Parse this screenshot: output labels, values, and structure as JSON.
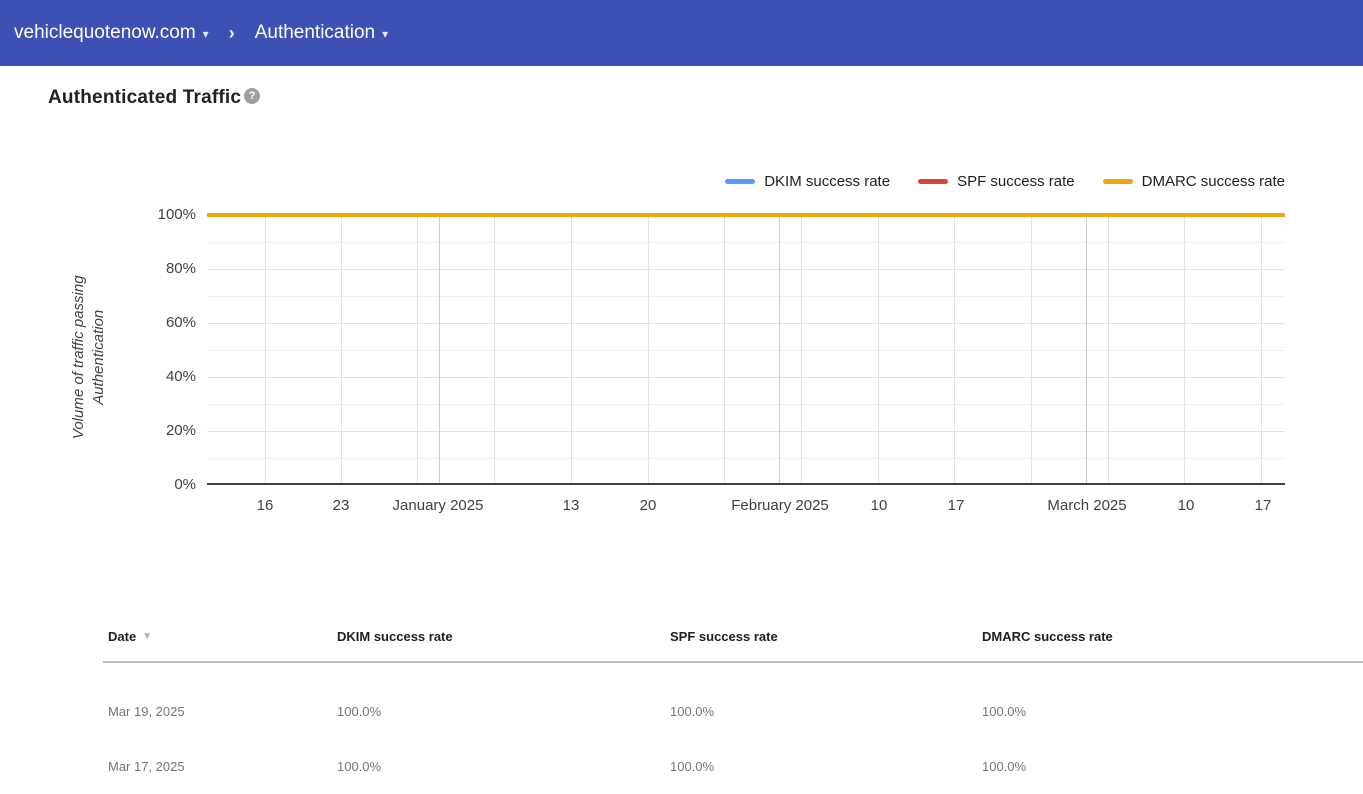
{
  "topbar": {
    "domain_menu": {
      "label": "vehiclequotenow.com",
      "caret": "▾"
    },
    "breadcrumb_separator": "›",
    "section_menu": {
      "label": "Authentication",
      "caret": "▾"
    }
  },
  "page": {
    "title": "Authenticated Traffic",
    "help_icon_glyph": "?"
  },
  "chart_data": {
    "type": "line",
    "title": "Authenticated Traffic",
    "grid": true,
    "legend_position": "top-right",
    "x_axis": {
      "tick_labels": [
        "16",
        "23",
        "January 2025",
        "13",
        "20",
        "February 2025",
        "10",
        "17",
        "March 2025",
        "10",
        "17"
      ]
    },
    "y_axis": {
      "label": "Volume of traffic passing Authentication",
      "tick_labels": [
        "100%",
        "80%",
        "60%",
        "40%",
        "20%",
        "0%"
      ],
      "range": [
        0,
        100
      ],
      "unit": "%"
    },
    "series": [
      {
        "name": "DKIM success rate",
        "color": "#5e97f6",
        "values": [
          100,
          100,
          100,
          100,
          100,
          100,
          100,
          100,
          100,
          100,
          100
        ]
      },
      {
        "name": "SPF success rate",
        "color": "#d64537",
        "values": [
          100,
          100,
          100,
          100,
          100,
          100,
          100,
          100,
          100,
          100,
          100
        ]
      },
      {
        "name": "DMARC success rate",
        "color": "#eba610",
        "values": [
          100,
          100,
          100,
          100,
          100,
          100,
          100,
          100,
          100,
          100,
          100
        ]
      }
    ]
  },
  "table": {
    "columns": [
      "Date",
      "DKIM success rate",
      "SPF success rate",
      "DMARC success rate"
    ],
    "sort": {
      "column": "Date",
      "direction": "desc",
      "glyph": "▼"
    },
    "rows": [
      {
        "date": "Mar 19, 2025",
        "dkim": "100.0%",
        "spf": "100.0%",
        "dmarc": "100.0%"
      },
      {
        "date": "Mar 17, 2025",
        "dkim": "100.0%",
        "spf": "100.0%",
        "dmarc": "100.0%"
      }
    ]
  }
}
